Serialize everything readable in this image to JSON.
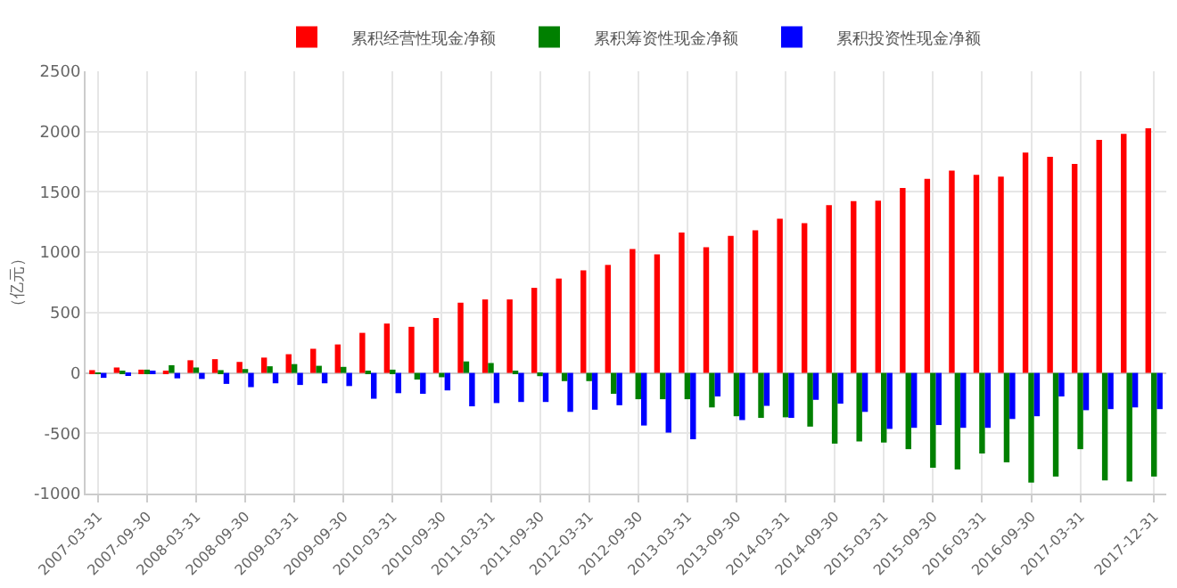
{
  "chart_data": {
    "type": "bar",
    "ylabel": "（亿元）",
    "categories": [
      "2007-03-31",
      null,
      "2007-09-30",
      null,
      "2008-03-31",
      null,
      "2008-09-30",
      null,
      "2009-03-31",
      null,
      "2009-09-30",
      null,
      "2010-03-31",
      null,
      "2010-09-30",
      null,
      "2011-03-31",
      null,
      "2011-09-30",
      null,
      "2012-03-31",
      null,
      "2012-09-30",
      null,
      "2013-03-31",
      null,
      "2013-09-30",
      null,
      "2014-03-31",
      null,
      "2014-09-30",
      null,
      "2015-03-31",
      null,
      "2015-09-30",
      null,
      "2016-03-31",
      null,
      "2016-09-30",
      null,
      "2017-03-31",
      null,
      null,
      "2017-12-31"
    ],
    "series": [
      {
        "name": "累积经营性现金净额",
        "color": "#ff0000",
        "values": [
          23,
          45,
          27,
          9,
          105,
          114,
          91,
          127,
          155,
          200,
          236,
          332,
          409,
          382,
          455,
          582,
          609,
          609,
          705,
          782,
          850,
          895,
          1027,
          982,
          1164,
          1041,
          1136,
          1182,
          1277,
          1241,
          1391,
          1423,
          1427,
          1532,
          1609,
          1677,
          1641,
          1627,
          1827,
          1791,
          1732,
          1932,
          1982,
          2027
        ]
      },
      {
        "name": "累积筹资性现金净额",
        "color": "#008000",
        "values": [
          3,
          9,
          27,
          64,
          45,
          23,
          32,
          55,
          73,
          59,
          50,
          18,
          27,
          -55,
          -36,
          95,
          82,
          18,
          -27,
          -68,
          -68,
          -173,
          -218,
          -218,
          -218,
          -286,
          -359,
          -373,
          -368,
          -445,
          -586,
          -568,
          -577,
          -632,
          -786,
          -800,
          -668,
          -741,
          -909,
          -859,
          -632,
          -891,
          -900,
          -859
        ]
      },
      {
        "name": "累积投资性现金净额",
        "color": "#0000ff",
        "values": [
          -41,
          -14,
          5,
          -45,
          -50,
          -91,
          -118,
          -86,
          -100,
          -86,
          -109,
          -214,
          -168,
          -173,
          -145,
          -277,
          -250,
          -241,
          -241,
          -323,
          -305,
          -268,
          -436,
          -495,
          -550,
          -195,
          -391,
          -273,
          -373,
          -223,
          -255,
          -323,
          -464,
          -455,
          -432,
          -455,
          -455,
          -382,
          -359,
          -195,
          -309,
          -300,
          -286,
          -300
        ]
      }
    ],
    "ylim": [
      -1000,
      2500
    ],
    "yticks": [
      -1000,
      -500,
      0,
      500,
      1000,
      1500,
      2000,
      2500
    ],
    "grid": true,
    "legend": "top"
  }
}
